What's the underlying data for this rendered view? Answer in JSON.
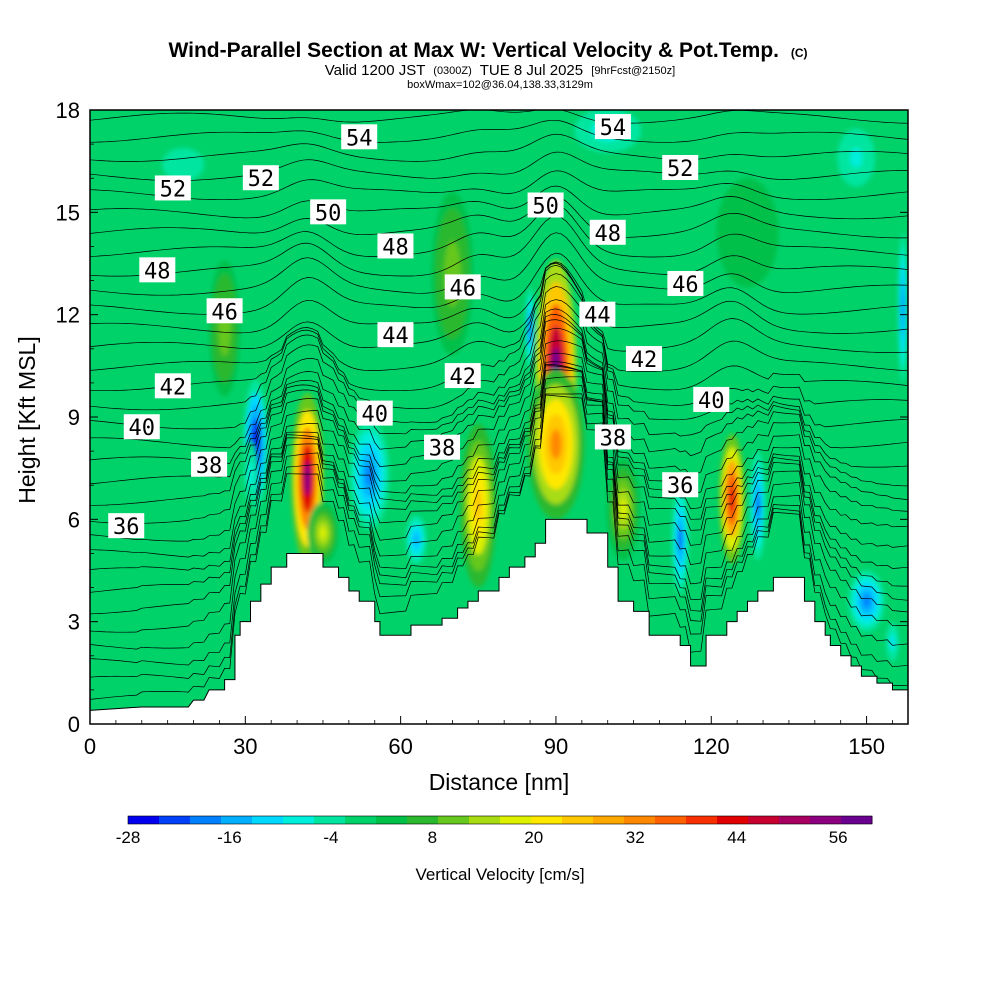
{
  "header": {
    "title_main": "Wind-Parallel Section at Max W: Vertical Velocity & Pot.Temp.",
    "title_mark": "(C)",
    "valid_a": "Valid 1200 JST",
    "valid_b": "(0300Z)",
    "valid_c": "TUE 8 Jul 2025",
    "valid_d": "[9hrFcst@2150z]",
    "boxline": "boxWmax=102@36.04,138.33,3129m"
  },
  "chart_data": {
    "type": "heatmap",
    "title": "Wind-Parallel Section at Max W: Vertical Velocity & Pot.Temp.",
    "xlabel": "Distance [nm]",
    "ylabel": "Height [Kft MSL]",
    "xlim": [
      0,
      158
    ],
    "ylim": [
      0,
      18
    ],
    "xticks": [
      "0",
      "30",
      "60",
      "90",
      "120",
      "150"
    ],
    "yticks": [
      "0",
      "3",
      "6",
      "9",
      "12",
      "15",
      "18"
    ],
    "colorbar": {
      "label": "Vertical Velocity [cm/s]",
      "tick_labels": [
        "-28",
        "-16",
        "-4",
        "8",
        "20",
        "32",
        "44",
        "56"
      ],
      "tick_values": [
        -28,
        -16,
        -4,
        8,
        20,
        32,
        44,
        56
      ],
      "min": -28,
      "max": 60,
      "colors": [
        "#0000ee",
        "#0040f8",
        "#0080ff",
        "#00b0ff",
        "#00d8ff",
        "#00eedc",
        "#00e6a0",
        "#00d26a",
        "#00c048",
        "#2ab82e",
        "#66c81e",
        "#a8dc12",
        "#dcf000",
        "#ffe800",
        "#ffc800",
        "#ffa800",
        "#ff8800",
        "#ff6000",
        "#f83000",
        "#e00000",
        "#c80030",
        "#a80060",
        "#8c0080",
        "#6a0090"
      ],
      "w_values": [
        -28,
        -24,
        -20,
        -16,
        -12,
        -8,
        -4,
        0,
        4,
        8,
        12,
        16,
        20,
        24,
        28,
        32,
        36,
        40,
        44,
        48,
        52,
        56,
        60,
        64
      ]
    },
    "terrain_kft": [
      [
        0,
        0.4
      ],
      [
        10,
        0.5
      ],
      [
        19,
        0.5
      ],
      [
        20,
        0.7
      ],
      [
        22,
        0.7
      ],
      [
        23,
        1.0
      ],
      [
        26,
        1.0
      ],
      [
        26,
        1.3
      ],
      [
        28,
        1.3
      ],
      [
        28,
        2.6
      ],
      [
        29,
        2.6
      ],
      [
        29,
        3.0
      ],
      [
        31,
        3.0
      ],
      [
        31,
        3.6
      ],
      [
        33,
        3.6
      ],
      [
        33,
        4.1
      ],
      [
        35,
        4.1
      ],
      [
        35,
        4.6
      ],
      [
        38,
        4.6
      ],
      [
        38,
        5.0
      ],
      [
        45,
        5.0
      ],
      [
        45,
        4.6
      ],
      [
        48,
        4.6
      ],
      [
        48,
        4.3
      ],
      [
        50,
        4.3
      ],
      [
        50,
        3.9
      ],
      [
        52,
        3.9
      ],
      [
        52,
        3.6
      ],
      [
        55,
        3.6
      ],
      [
        55,
        3.0
      ],
      [
        56,
        3.0
      ],
      [
        56,
        2.6
      ],
      [
        62,
        2.6
      ],
      [
        62,
        2.9
      ],
      [
        68,
        2.9
      ],
      [
        68,
        3.1
      ],
      [
        71,
        3.1
      ],
      [
        71,
        3.4
      ],
      [
        73,
        3.4
      ],
      [
        73,
        3.6
      ],
      [
        75,
        3.6
      ],
      [
        75,
        3.9
      ],
      [
        79,
        3.9
      ],
      [
        79,
        4.3
      ],
      [
        81,
        4.3
      ],
      [
        81,
        4.6
      ],
      [
        84,
        4.6
      ],
      [
        84,
        4.9
      ],
      [
        86,
        4.9
      ],
      [
        86,
        5.3
      ],
      [
        88,
        5.3
      ],
      [
        88,
        6.0
      ],
      [
        96,
        6.0
      ],
      [
        96,
        5.6
      ],
      [
        100,
        5.6
      ],
      [
        100,
        4.6
      ],
      [
        102,
        4.6
      ],
      [
        102,
        3.6
      ],
      [
        105,
        3.6
      ],
      [
        105,
        3.3
      ],
      [
        108,
        3.3
      ],
      [
        108,
        2.6
      ],
      [
        114,
        2.6
      ],
      [
        114,
        2.3
      ],
      [
        116,
        2.3
      ],
      [
        116,
        1.7
      ],
      [
        118,
        1.7
      ],
      [
        119,
        1.7
      ],
      [
        119,
        2.6
      ],
      [
        123,
        2.6
      ],
      [
        123,
        3.0
      ],
      [
        125,
        3.0
      ],
      [
        125,
        3.3
      ],
      [
        127,
        3.3
      ],
      [
        127,
        3.6
      ],
      [
        129,
        3.6
      ],
      [
        129,
        3.9
      ],
      [
        132,
        3.9
      ],
      [
        132,
        4.3
      ],
      [
        138,
        4.3
      ],
      [
        138,
        3.6
      ],
      [
        140,
        3.6
      ],
      [
        140,
        3.0
      ],
      [
        142,
        3.0
      ],
      [
        142,
        2.6
      ],
      [
        143,
        2.6
      ],
      [
        143,
        2.3
      ],
      [
        145,
        2.3
      ],
      [
        145,
        2.0
      ],
      [
        147,
        2.0
      ],
      [
        147,
        1.7
      ],
      [
        149,
        1.7
      ],
      [
        149,
        1.4
      ],
      [
        152,
        1.4
      ],
      [
        152,
        1.2
      ],
      [
        155,
        1.2
      ],
      [
        155,
        1.0
      ],
      [
        158,
        1.0
      ]
    ],
    "w_cells": [
      {
        "x": 32,
        "y": 8.2,
        "rx": 2.4,
        "ry": 1.9,
        "w": -28
      },
      {
        "x": 31,
        "y": 7.3,
        "rx": 1.4,
        "ry": 1.0,
        "w": -8
      },
      {
        "x": 42,
        "y": 7.2,
        "rx": 3.2,
        "ry": 2.5,
        "w": 60
      },
      {
        "x": 45,
        "y": 5.6,
        "rx": 3.0,
        "ry": 0.9,
        "w": 22
      },
      {
        "x": 54,
        "y": 7.3,
        "rx": 3.8,
        "ry": 1.6,
        "w": -18
      },
      {
        "x": 63,
        "y": 5.4,
        "rx": 2.4,
        "ry": 0.9,
        "w": -16
      },
      {
        "x": 75,
        "y": 6.4,
        "rx": 3.5,
        "ry": 2.4,
        "w": 30
      },
      {
        "x": 85,
        "y": 11.6,
        "rx": 0.9,
        "ry": 1.2,
        "w": -24
      },
      {
        "x": 90,
        "y": 10.4,
        "rx": 4.0,
        "ry": 3.2,
        "w": 64
      },
      {
        "x": 90,
        "y": 8.2,
        "rx": 5.5,
        "ry": 2.2,
        "w": 36
      },
      {
        "x": 103,
        "y": 6.3,
        "rx": 3.2,
        "ry": 1.5,
        "w": 20
      },
      {
        "x": 114,
        "y": 5.4,
        "rx": 1.6,
        "ry": 1.6,
        "w": -22
      },
      {
        "x": 124,
        "y": 6.6,
        "rx": 2.5,
        "ry": 1.9,
        "w": 50
      },
      {
        "x": 129,
        "y": 6.4,
        "rx": 1.5,
        "ry": 1.6,
        "w": -22
      },
      {
        "x": 150,
        "y": 3.6,
        "rx": 3.5,
        "ry": 0.9,
        "w": -20
      },
      {
        "x": 155,
        "y": 2.4,
        "rx": 1.5,
        "ry": 0.7,
        "w": -10
      },
      {
        "x": 148,
        "y": 16.6,
        "rx": 6.0,
        "ry": 1.4,
        "w": -6
      },
      {
        "x": 157,
        "y": 12.2,
        "rx": 0.9,
        "ry": 2.2,
        "w": -18
      },
      {
        "x": 100,
        "y": 17.4,
        "rx": 8.0,
        "ry": 0.8,
        "w": -10
      },
      {
        "x": 26,
        "y": 11.6,
        "rx": 3.0,
        "ry": 2.0,
        "w": 14
      },
      {
        "x": 70,
        "y": 13.2,
        "rx": 4.0,
        "ry": 2.4,
        "w": 14
      },
      {
        "x": 18,
        "y": 16.4,
        "rx": 10.0,
        "ry": 1.2,
        "w": -4
      },
      {
        "x": 127,
        "y": 14.4,
        "rx": 6.0,
        "ry": 1.6,
        "w": 6
      }
    ],
    "theta_contour_labels": [
      {
        "value": "36",
        "x": 7,
        "y": 5.8
      },
      {
        "value": "38",
        "x": 23,
        "y": 7.6
      },
      {
        "value": "40",
        "x": 10,
        "y": 8.7
      },
      {
        "value": "42",
        "x": 16,
        "y": 9.9
      },
      {
        "value": "46",
        "x": 26,
        "y": 12.1
      },
      {
        "value": "48",
        "x": 13,
        "y": 13.3
      },
      {
        "value": "52",
        "x": 16,
        "y": 15.7
      },
      {
        "value": "52",
        "x": 33,
        "y": 16.0
      },
      {
        "value": "50",
        "x": 46,
        "y": 15.0
      },
      {
        "value": "54",
        "x": 52,
        "y": 17.2
      },
      {
        "value": "48",
        "x": 59,
        "y": 14.0
      },
      {
        "value": "46",
        "x": 72,
        "y": 12.8
      },
      {
        "value": "44",
        "x": 59,
        "y": 11.4
      },
      {
        "value": "42",
        "x": 72,
        "y": 10.2
      },
      {
        "value": "40",
        "x": 55,
        "y": 9.1
      },
      {
        "value": "38",
        "x": 68,
        "y": 8.1
      },
      {
        "value": "50",
        "x": 88,
        "y": 15.2
      },
      {
        "value": "54",
        "x": 101,
        "y": 17.5
      },
      {
        "value": "48",
        "x": 100,
        "y": 14.4
      },
      {
        "value": "52",
        "x": 114,
        "y": 16.3
      },
      {
        "value": "46",
        "x": 115,
        "y": 12.9
      },
      {
        "value": "44",
        "x": 98,
        "y": 12.0
      },
      {
        "value": "42",
        "x": 107,
        "y": 10.7
      },
      {
        "value": "40",
        "x": 120,
        "y": 9.5
      },
      {
        "value": "38",
        "x": 101,
        "y": 8.4
      },
      {
        "value": "36",
        "x": 114,
        "y": 7.0
      }
    ],
    "grid": false
  }
}
